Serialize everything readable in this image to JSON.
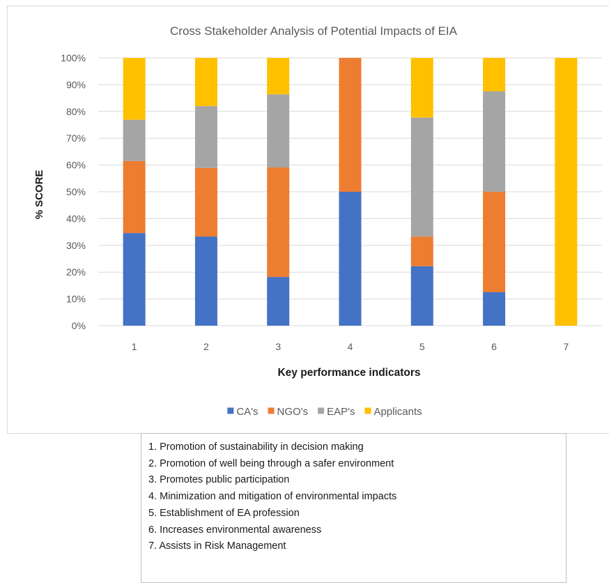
{
  "chart_data": {
    "type": "bar",
    "stacked": true,
    "percent_stacked": true,
    "title": "Cross Stakeholder Analysis of Potential Impacts of EIA",
    "xlabel": "Key performance indicators",
    "ylabel": "% SCORE",
    "categories": [
      "1",
      "2",
      "3",
      "4",
      "5",
      "6",
      "7"
    ],
    "ylim": [
      0,
      100
    ],
    "yticks": [
      "0%",
      "10%",
      "20%",
      "30%",
      "40%",
      "50%",
      "60%",
      "70%",
      "80%",
      "90%",
      "100%"
    ],
    "grid": true,
    "legend_position": "bottom",
    "series": [
      {
        "name": "CA's",
        "color": "#4472c4",
        "values": [
          34.6,
          33.3,
          18.2,
          50,
          22.2,
          12.5,
          0
        ]
      },
      {
        "name": "NGO's",
        "color": "#ed7d31",
        "values": [
          26.9,
          25.6,
          40.9,
          50,
          11.1,
          37.5,
          0
        ]
      },
      {
        "name": "EAP's",
        "color": "#a5a5a5",
        "values": [
          15.4,
          23.1,
          27.3,
          0,
          44.4,
          37.5,
          0
        ]
      },
      {
        "name": "Applicants",
        "color": "#ffc000",
        "values": [
          23.1,
          18.0,
          13.6,
          0,
          22.3,
          12.5,
          100
        ]
      }
    ]
  },
  "kpi_legend": [
    "1. Promotion of sustainability in decision making",
    "2. Promotion of well being through a safer environment",
    "3. Promotes public participation",
    "4. Minimization and mitigation of environmental impacts",
    "5. Establishment of EA profession",
    "6. Increases environmental awareness",
    "7. Assists in Risk Management"
  ]
}
